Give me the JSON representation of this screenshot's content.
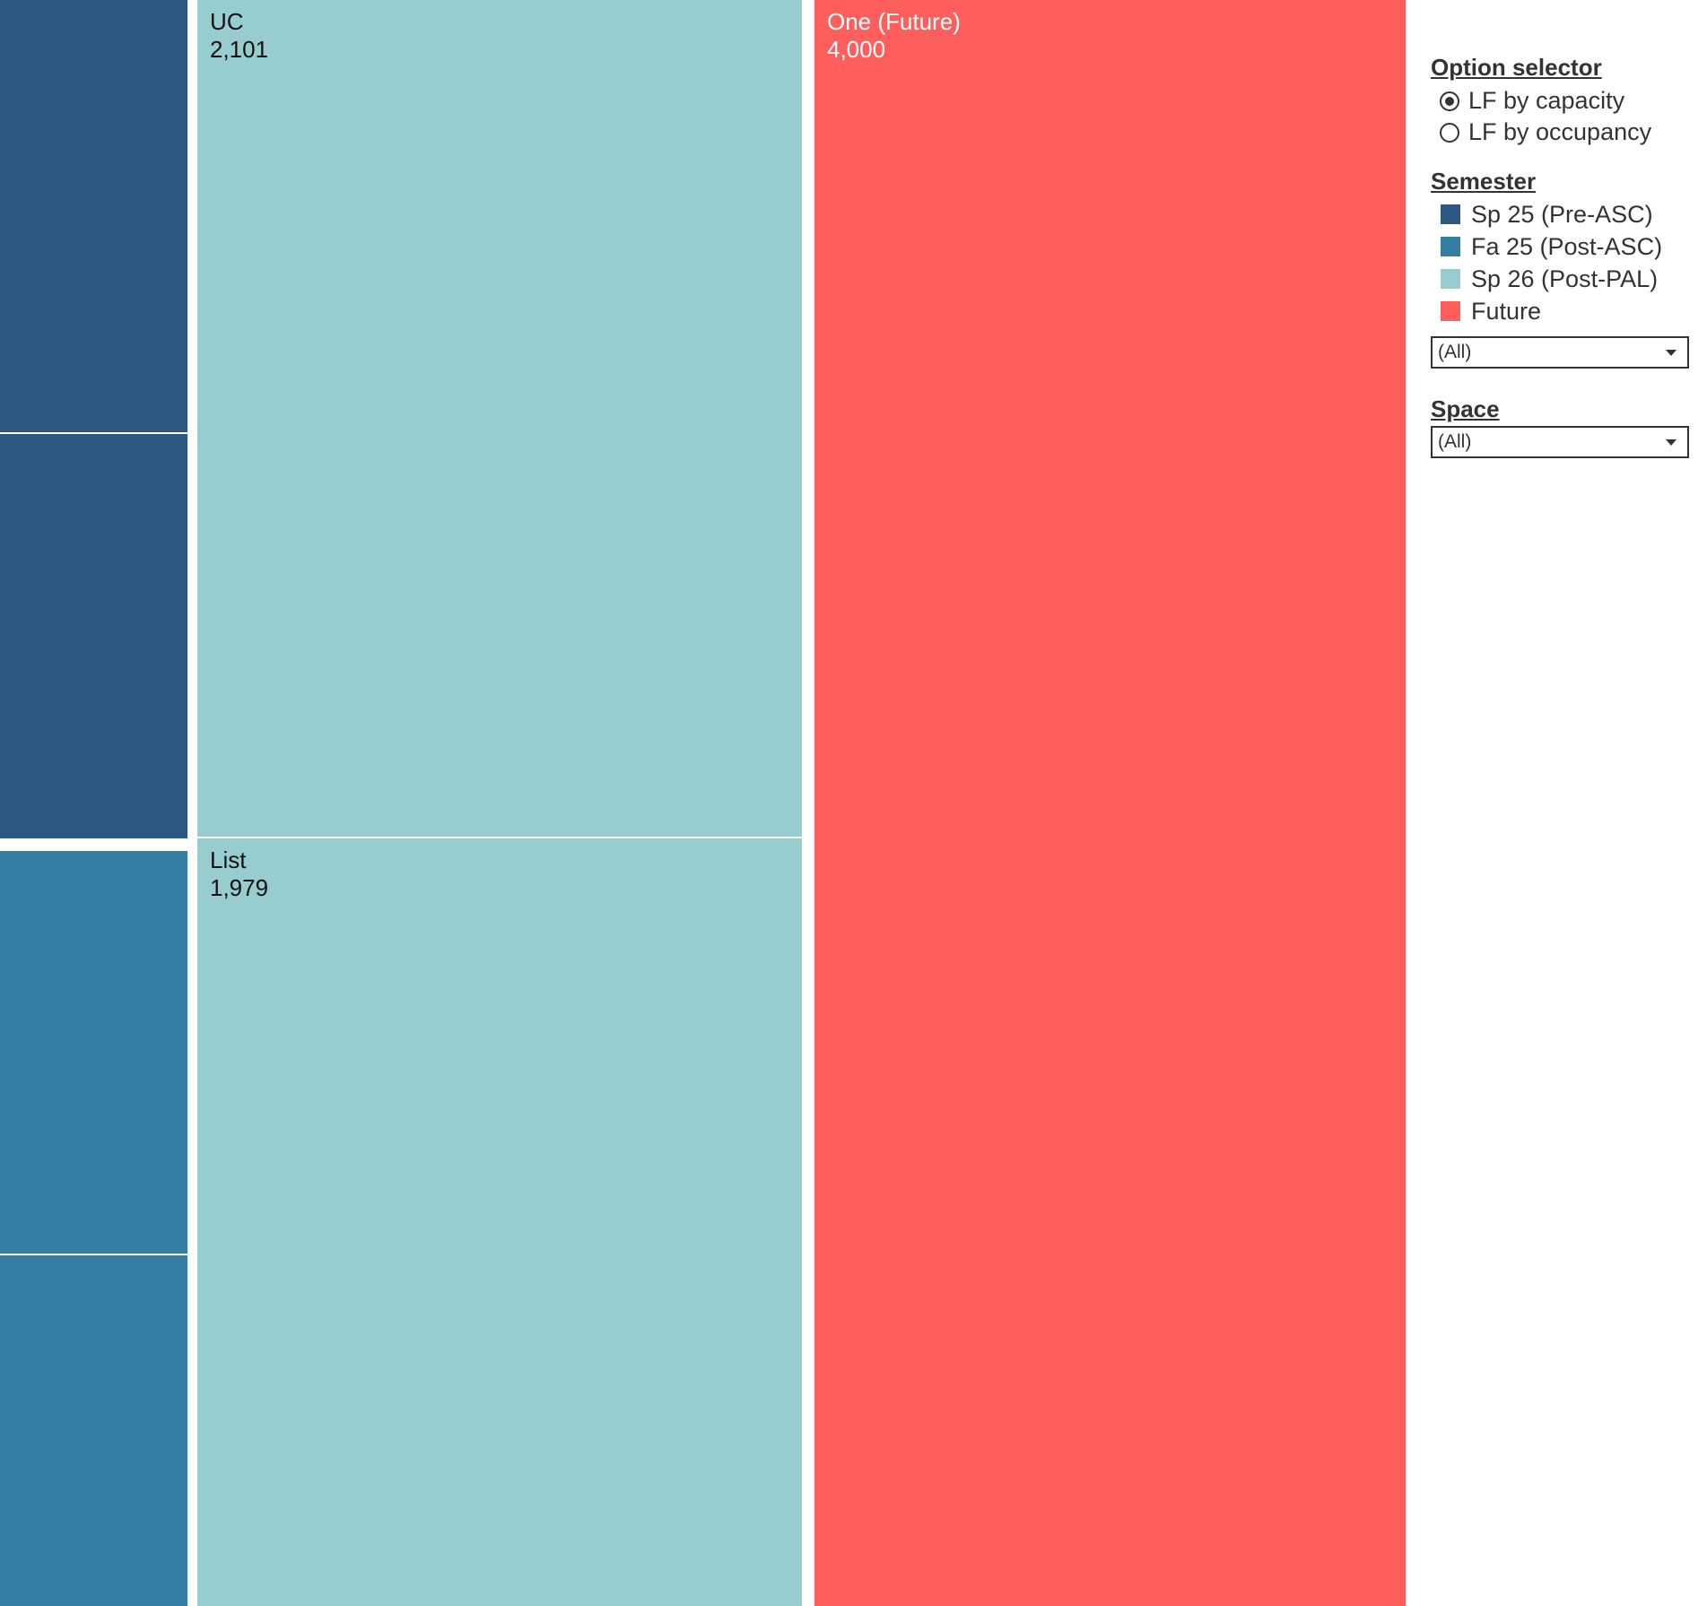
{
  "chart_data": {
    "type": "treemap",
    "tiles": [
      {
        "group": "Sp 25 (Pre-ASC)",
        "label": "",
        "value": null
      },
      {
        "group": "Sp 25 (Pre-ASC)",
        "label": "",
        "value": null
      },
      {
        "group": "Fa 25 (Post-ASC)",
        "label": "",
        "value": null
      },
      {
        "group": "Fa 25 (Post-ASC)",
        "label": "",
        "value": null
      },
      {
        "group": "Sp 26 (Post-PAL)",
        "label": "UC",
        "value": "2,101"
      },
      {
        "group": "Sp 26 (Post-PAL)",
        "label": "List",
        "value": "1,979"
      },
      {
        "group": "Future",
        "label": "One (Future)",
        "value": "4,000"
      }
    ],
    "legend": [
      {
        "name": "Sp 25 (Pre-ASC)",
        "color": "#2c5882"
      },
      {
        "name": "Fa 25 (Post-ASC)",
        "color": "#347ea3"
      },
      {
        "name": "Sp 26 (Post-PAL)",
        "color": "#97cdce"
      },
      {
        "name": "Future",
        "color": "#fe5f5c"
      }
    ]
  },
  "controls": {
    "option_selector": {
      "title": "Option selector",
      "options": [
        "LF by capacity",
        "LF by occupancy"
      ],
      "selected": "LF by capacity"
    },
    "semester": {
      "title": "Semester",
      "dropdown_value": "(All)"
    },
    "space": {
      "title": "Space",
      "dropdown_value": "(All)"
    }
  },
  "icons": {
    "dropdown_caret": "chevron-down-icon",
    "radio": "radio-button-icon"
  }
}
